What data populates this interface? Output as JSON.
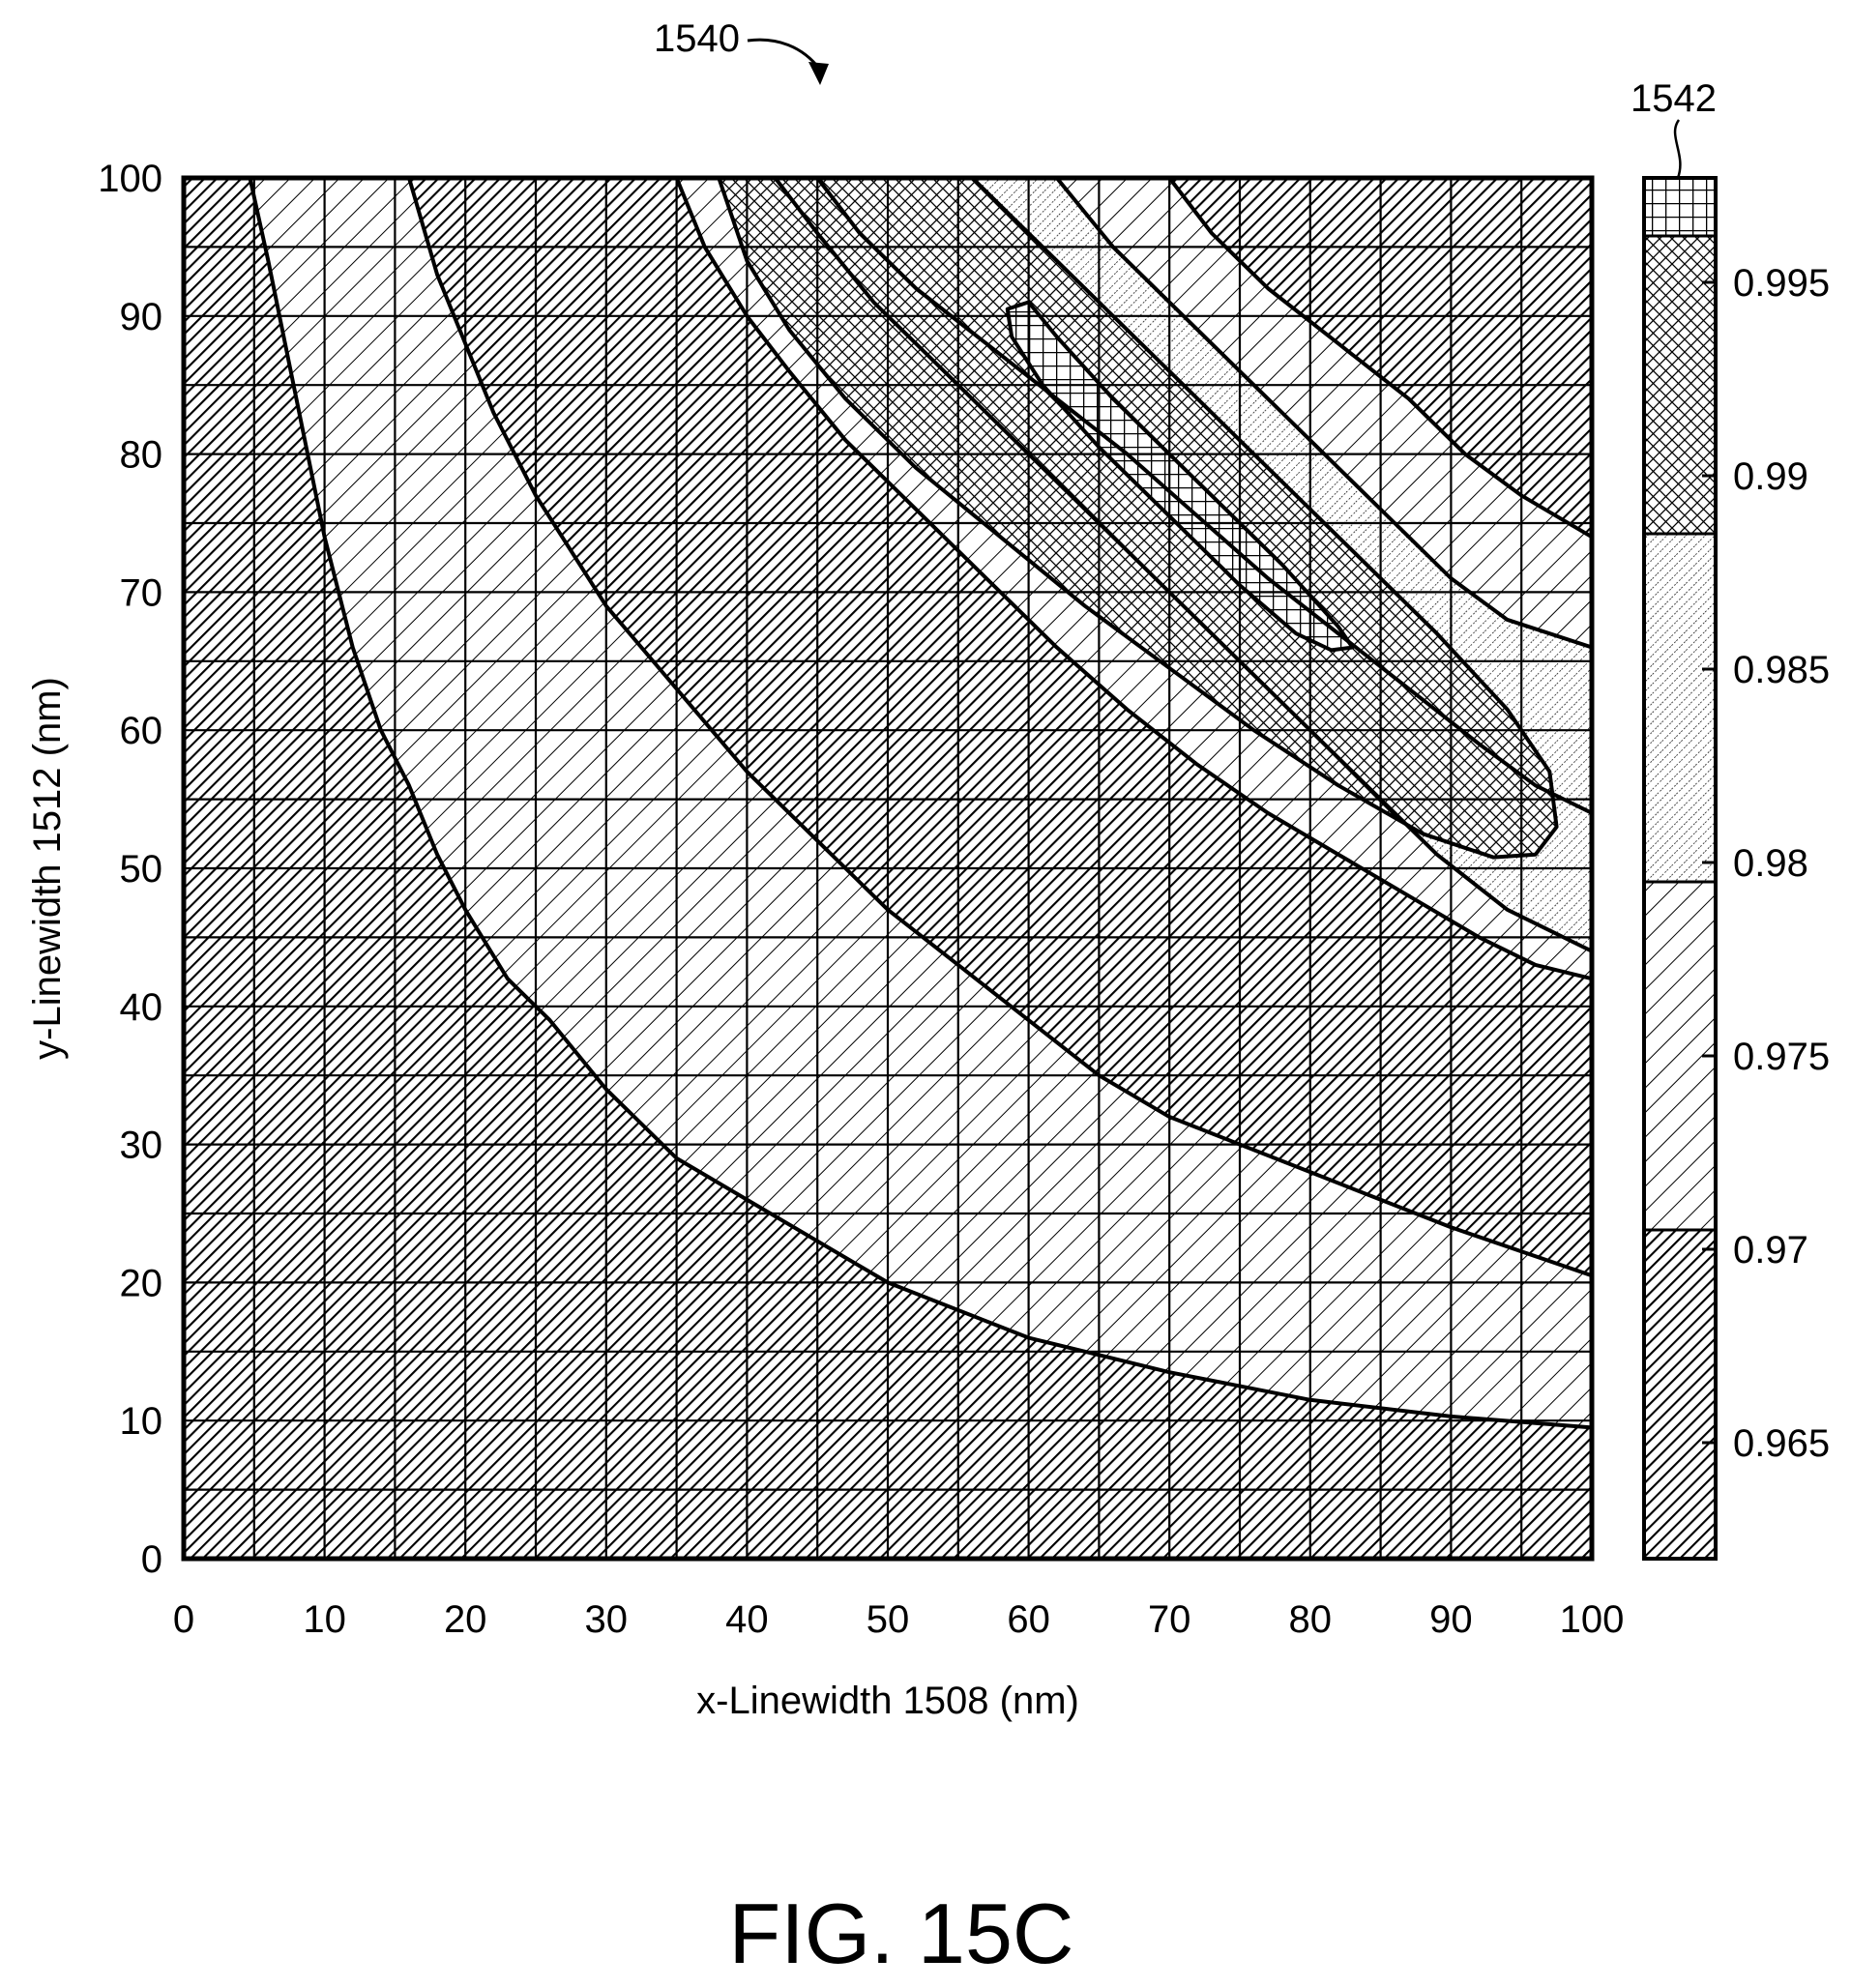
{
  "figure": {
    "reference_label": "1540",
    "colorbar_reference_label": "1542",
    "caption": "FIG. 15C"
  },
  "chart_data": {
    "type": "heatmap",
    "title": "",
    "xlabel": "x-Linewidth 1508 (nm)",
    "ylabel": "y-Linewidth 1512 (nm)",
    "xlim": [
      0,
      100
    ],
    "ylim": [
      0,
      100
    ],
    "x_ticks": [
      0,
      10,
      20,
      30,
      40,
      50,
      60,
      70,
      80,
      90,
      100
    ],
    "y_ticks": [
      0,
      10,
      20,
      30,
      40,
      50,
      60,
      70,
      80,
      90,
      100
    ],
    "x_tick_labels": [
      "0",
      "10",
      "20",
      "30",
      "40",
      "50",
      "60",
      "70",
      "80",
      "90",
      "100"
    ],
    "y_tick_labels": [
      "0",
      "10",
      "20",
      "30",
      "40",
      "50",
      "60",
      "70",
      "80",
      "90",
      "100"
    ],
    "grid": true,
    "z_label": "",
    "colorbar": {
      "range": [
        0.962,
        0.9977
      ],
      "ticks": [
        0.965,
        0.97,
        0.975,
        0.98,
        0.985,
        0.99,
        0.995
      ],
      "tick_labels": [
        "0.965",
        "0.97",
        "0.975",
        "0.98",
        "0.985",
        "0.99",
        "0.995"
      ],
      "levels": [
        {
          "from": 0.962,
          "to": 0.9705,
          "pattern": "dense-diagonal"
        },
        {
          "from": 0.9705,
          "to": 0.9795,
          "pattern": "sparse-diagonal"
        },
        {
          "from": 0.9795,
          "to": 0.9885,
          "pattern": "fine-dots"
        },
        {
          "from": 0.9885,
          "to": 0.9962,
          "pattern": "crosshatch"
        },
        {
          "from": 0.9962,
          "to": 0.9977,
          "pattern": "grid"
        }
      ],
      "placement": "right"
    },
    "contour_regions": [
      {
        "level": "0.962-0.9705",
        "region": "lower-left corner (x + y small)"
      },
      {
        "level": "0.9705-0.9795",
        "band": "first band"
      },
      {
        "level": "0.962-0.9705",
        "band": "second dark band"
      },
      {
        "level": "0.9705-0.9795",
        "band": "third band"
      },
      {
        "level": "0.979-0.9885",
        "band": "fourth band"
      },
      {
        "level": "0.9885-0.9962",
        "band": "plateau near x 55-95, y 50-100"
      },
      {
        "level": "0.9962-0.9977",
        "peak": "island around x 60-82, y 66-91"
      },
      {
        "level": "0.962-0.9705",
        "region": "upper-right corner"
      }
    ],
    "contour_lines": [
      {
        "points": [
          [
            4.7,
            100
          ],
          [
            6,
            94
          ],
          [
            8,
            84
          ],
          [
            10,
            74
          ],
          [
            12,
            66
          ],
          [
            14,
            60
          ],
          [
            16,
            56
          ],
          [
            18,
            51
          ],
          [
            20,
            47
          ],
          [
            23,
            42
          ],
          [
            26,
            39
          ],
          [
            30,
            34
          ],
          [
            35,
            29
          ],
          [
            40,
            26
          ],
          [
            50,
            20
          ],
          [
            60,
            16
          ],
          [
            70,
            13.5
          ],
          [
            80,
            11.5
          ],
          [
            90,
            10.3
          ],
          [
            100,
            9.5
          ]
        ]
      },
      {
        "points": [
          [
            16,
            100
          ],
          [
            18,
            93
          ],
          [
            20,
            88
          ],
          [
            22,
            83
          ],
          [
            25,
            77
          ],
          [
            30,
            69
          ],
          [
            35,
            63
          ],
          [
            40,
            57
          ],
          [
            45,
            52
          ],
          [
            50,
            47
          ],
          [
            55,
            43
          ],
          [
            60,
            39
          ],
          [
            65,
            35
          ],
          [
            70,
            32
          ],
          [
            80,
            28
          ],
          [
            90,
            24
          ],
          [
            100,
            20.5
          ]
        ]
      },
      {
        "points": [
          [
            35,
            100
          ],
          [
            37,
            95
          ],
          [
            40,
            90
          ],
          [
            43,
            86
          ],
          [
            47,
            81
          ],
          [
            52,
            76
          ],
          [
            57,
            71
          ],
          [
            62,
            66
          ],
          [
            67,
            61.5
          ],
          [
            72,
            57.5
          ],
          [
            77,
            54
          ],
          [
            82,
            51
          ],
          [
            87,
            48
          ],
          [
            92,
            45
          ],
          [
            96,
            43
          ],
          [
            100,
            42
          ]
        ]
      },
      {
        "points": [
          [
            42,
            100
          ],
          [
            45,
            96
          ],
          [
            49,
            91
          ],
          [
            54,
            86
          ],
          [
            59,
            81
          ],
          [
            64,
            76
          ],
          [
            69,
            71
          ],
          [
            74,
            66
          ],
          [
            79,
            61
          ],
          [
            84,
            56
          ],
          [
            89,
            51
          ],
          [
            94,
            47
          ],
          [
            100,
            44
          ]
        ]
      },
      {
        "points": [
          [
            45,
            100
          ],
          [
            48,
            96
          ],
          [
            52,
            92
          ],
          [
            57,
            88
          ],
          [
            62,
            84
          ],
          [
            67,
            80
          ],
          [
            72,
            75.5
          ],
          [
            77,
            71
          ],
          [
            82,
            67
          ],
          [
            87,
            63
          ],
          [
            92,
            59
          ],
          [
            96,
            56
          ],
          [
            100,
            54
          ]
        ]
      },
      {
        "points": [
          [
            62,
            100
          ],
          [
            66,
            95
          ],
          [
            71,
            90
          ],
          [
            76,
            85
          ],
          [
            81,
            80
          ],
          [
            86,
            75
          ],
          [
            90,
            71
          ],
          [
            94,
            68
          ],
          [
            100,
            66
          ]
        ]
      },
      {
        "points": [
          [
            70,
            100
          ],
          [
            73,
            96
          ],
          [
            77,
            92
          ],
          [
            82,
            88
          ],
          [
            87,
            84
          ],
          [
            91,
            80
          ],
          [
            95,
            77
          ],
          [
            100,
            74
          ]
        ]
      }
    ],
    "peak_contour": [
      [
        58.5,
        90.5
      ],
      [
        60,
        91
      ],
      [
        62,
        88.5
      ],
      [
        66,
        84
      ],
      [
        72,
        78
      ],
      [
        78,
        72
      ],
      [
        82,
        67.5
      ],
      [
        83,
        66
      ],
      [
        81.5,
        65.8
      ],
      [
        79,
        67
      ],
      [
        75,
        70.5
      ],
      [
        70,
        75.5
      ],
      [
        65,
        80.5
      ],
      [
        61,
        85
      ],
      [
        58.8,
        88.5
      ],
      [
        58.5,
        90.5
      ]
    ],
    "plateau_contour": [
      [
        56,
        100
      ],
      [
        60,
        96
      ],
      [
        66,
        90
      ],
      [
        72,
        84
      ],
      [
        78,
        78
      ],
      [
        84,
        72
      ],
      [
        89,
        67
      ],
      [
        94,
        61.5
      ],
      [
        97,
        57
      ],
      [
        97.5,
        53
      ],
      [
        96,
        51
      ],
      [
        93,
        50.8
      ],
      [
        88,
        52.5
      ],
      [
        82,
        56
      ],
      [
        76,
        60
      ],
      [
        70,
        64.5
      ],
      [
        64,
        69
      ],
      [
        58,
        74
      ],
      [
        52,
        79
      ],
      [
        47,
        84
      ],
      [
        43,
        89
      ],
      [
        40,
        94
      ],
      [
        38,
        100
      ]
    ]
  }
}
